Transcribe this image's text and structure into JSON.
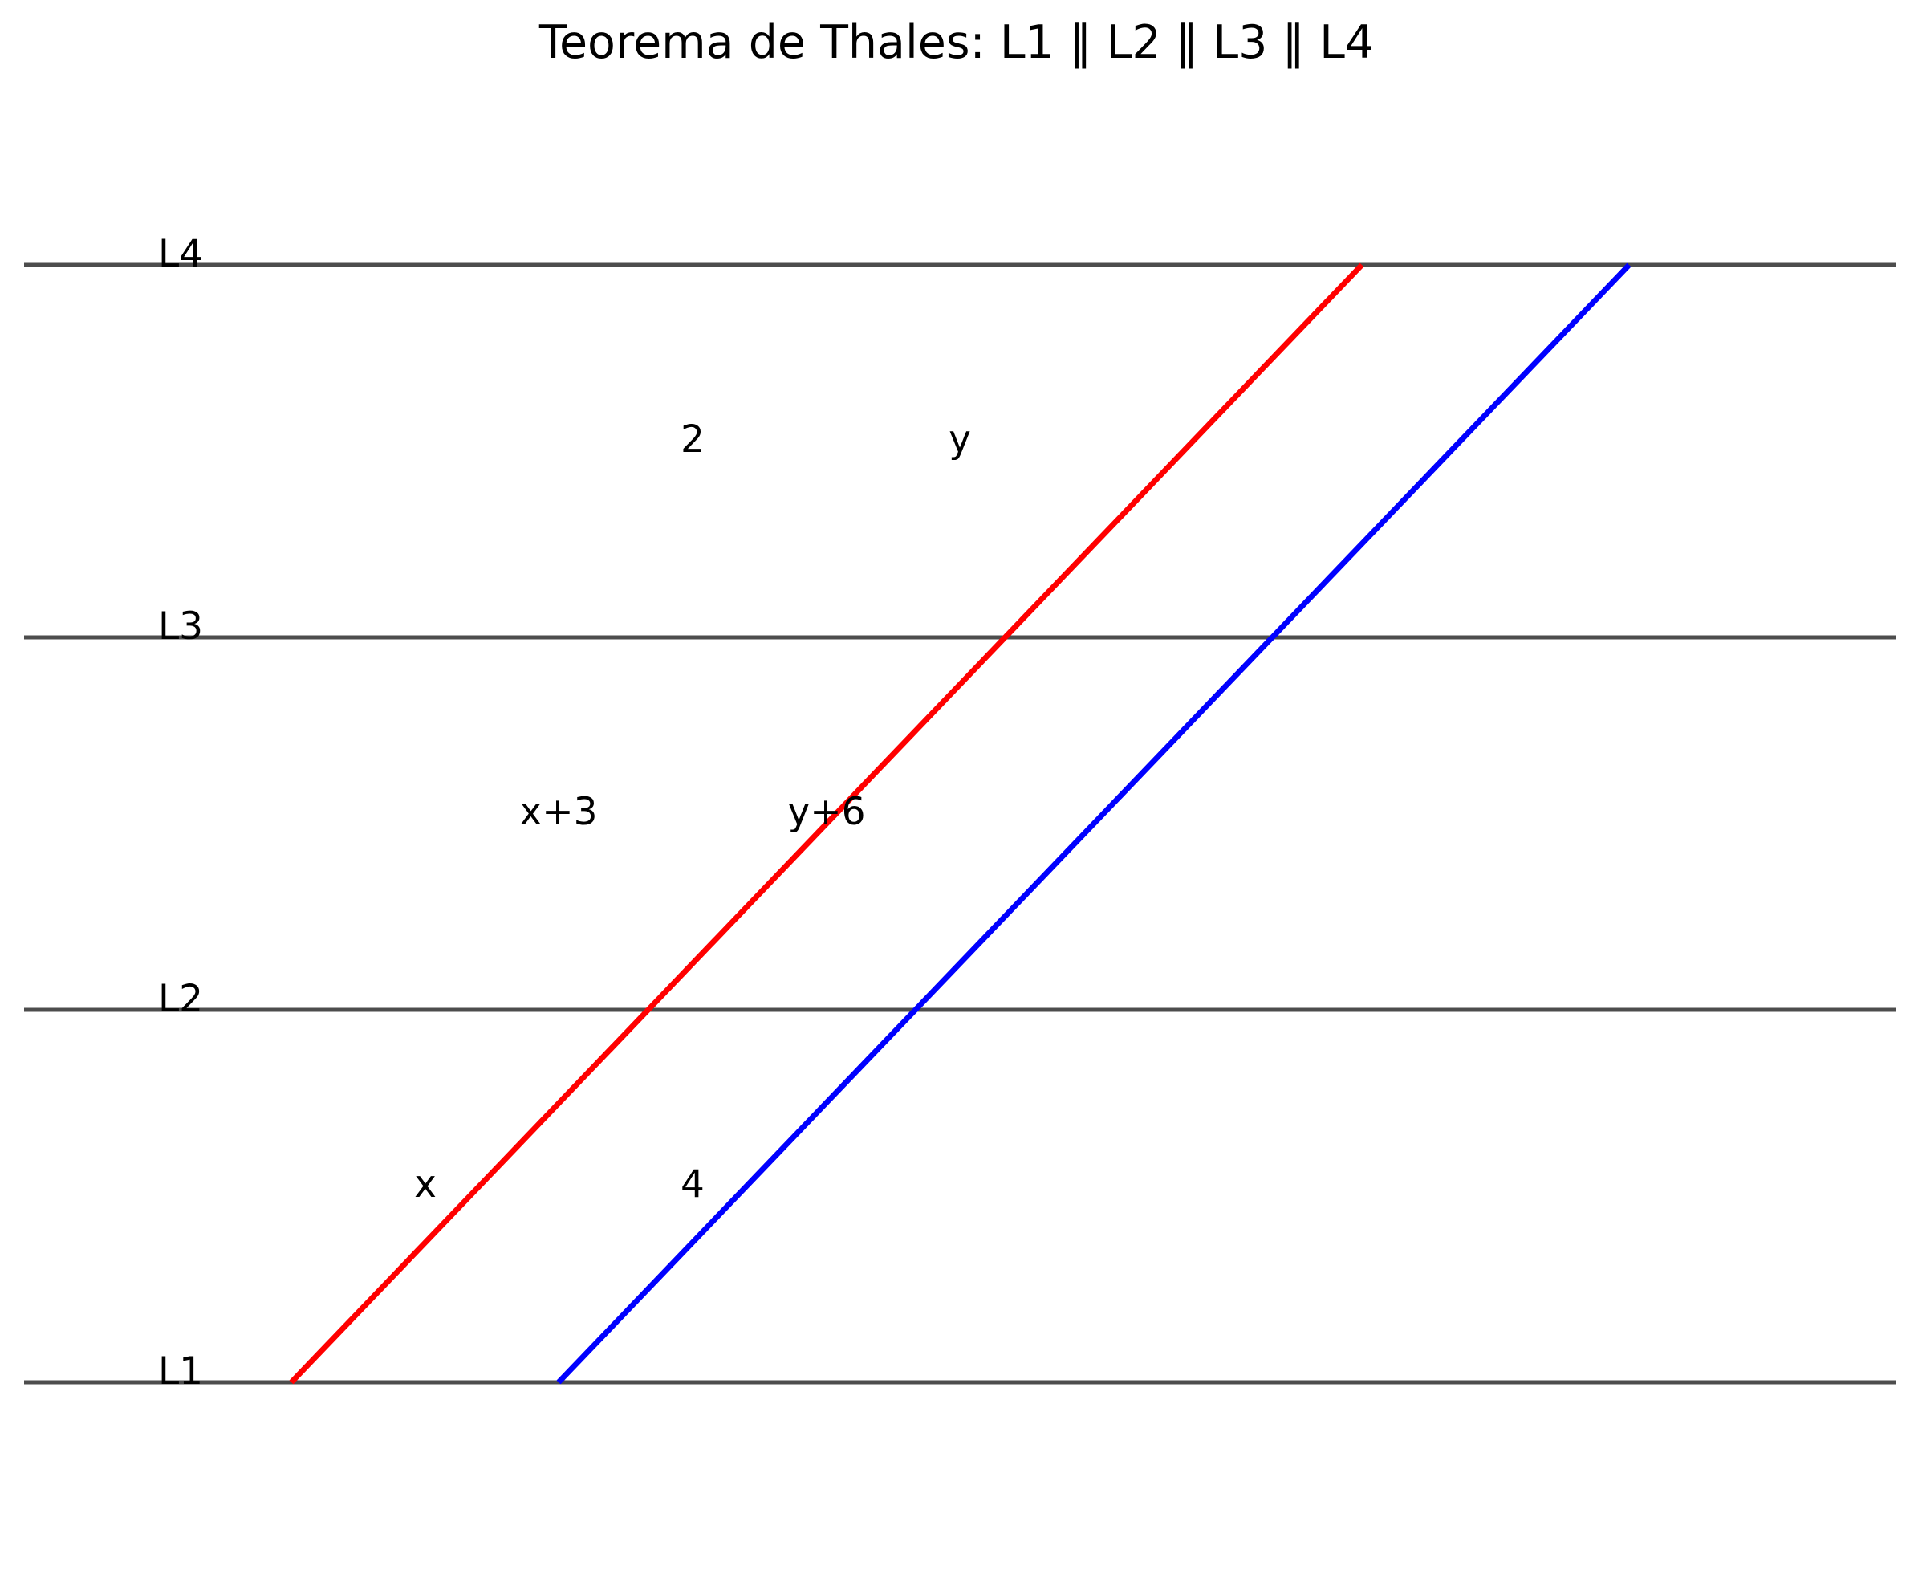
{
  "title": "Teorema de Thales: L1 ‖ L2 ‖ L3 ‖ L4",
  "parallel_lines": [
    {
      "name": "L1"
    },
    {
      "name": "L2"
    },
    {
      "name": "L3"
    },
    {
      "name": "L4"
    }
  ],
  "transversals": [
    {
      "id": "red",
      "color": "#ff0000"
    },
    {
      "id": "blue",
      "color": "#0000ff"
    }
  ],
  "segment_labels": {
    "l1_l2_left": "x",
    "l1_l2_right": "4",
    "l2_l3_left": "x+3",
    "l2_l3_right": "y+6",
    "l3_l4_left": "2",
    "l3_l4_right": "y"
  },
  "colors": {
    "parallel_line": "#4d4d4d",
    "background": "#ffffff"
  }
}
